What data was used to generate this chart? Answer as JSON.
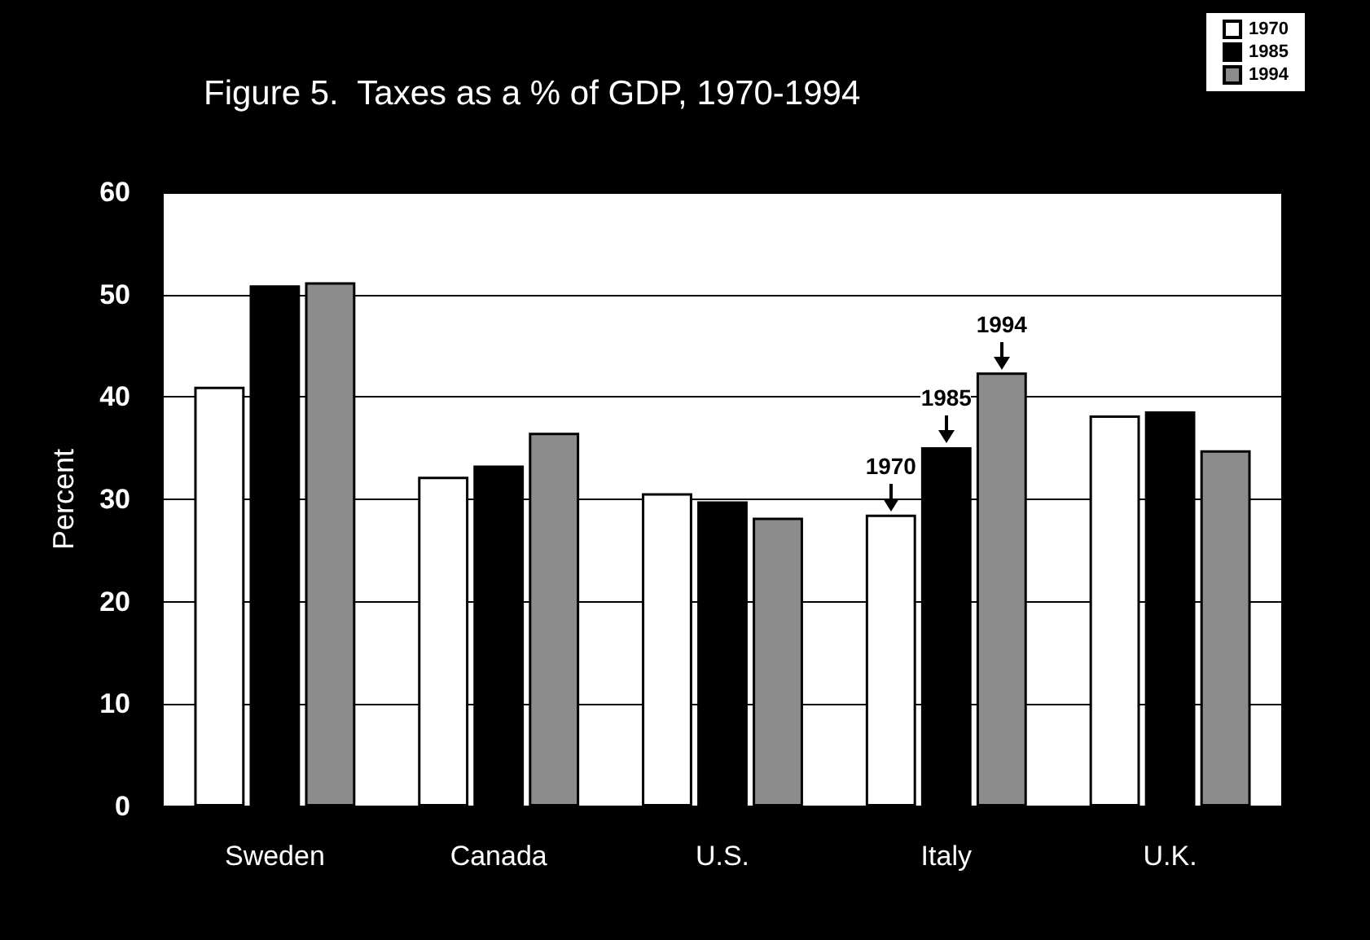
{
  "chart_data": {
    "type": "bar",
    "title": "Figure 5.  Taxes as a % of GDP, 1970-1994",
    "ylabel": "Percent",
    "categories": [
      "Sweden",
      "Canada",
      "U.S.",
      "Italy",
      "U.K."
    ],
    "series": [
      {
        "name": "1970",
        "color": "#ffffff",
        "values": [
          41,
          32.2,
          30.6,
          28.5,
          38.2
        ]
      },
      {
        "name": "1985",
        "color": "#000000",
        "values": [
          50.9,
          33.3,
          29.8,
          35.1,
          38.6
        ]
      },
      {
        "name": "1994",
        "color": "#8c8c8c",
        "values": [
          51.2,
          36.5,
          28.2,
          42.4,
          34.8
        ]
      }
    ],
    "annotations": [
      "1970",
      "1985",
      "1994"
    ],
    "ylim": [
      0,
      60
    ],
    "yticks": [
      0,
      10,
      20,
      30,
      40,
      50,
      60
    ],
    "grid": "y",
    "legend": "top right"
  }
}
